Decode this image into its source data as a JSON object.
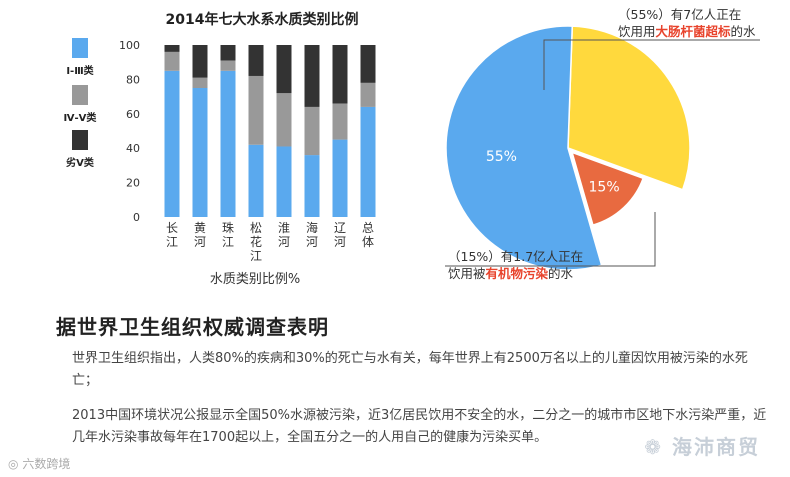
{
  "chart_data": [
    {
      "type": "bar",
      "stacked": true,
      "title": "2014年七大水系水质类别比例",
      "xlabel": "水质类别比例%",
      "ylim": [
        0,
        100
      ],
      "yticks": [
        0,
        20,
        40,
        60,
        80,
        100
      ],
      "legend_position": "left",
      "categories": [
        "长江",
        "黄河",
        "珠江",
        "松花江",
        "淮河",
        "海河",
        "辽河",
        "总体"
      ],
      "series": [
        {
          "name": "Ⅰ-Ⅲ类",
          "color": "#5aa9ee",
          "values": [
            85,
            75,
            85,
            42,
            41,
            36,
            45,
            64
          ]
        },
        {
          "name": "Ⅳ-Ⅴ类",
          "color": "#999999",
          "values": [
            11,
            6,
            6,
            40,
            31,
            28,
            21,
            14
          ]
        },
        {
          "name": "劣Ⅴ类",
          "color": "#333333",
          "values": [
            4,
            19,
            9,
            18,
            28,
            36,
            34,
            22
          ]
        }
      ]
    },
    {
      "type": "pie",
      "slices": [
        {
          "label": "55%",
          "value": 55,
          "color": "#5aa9ee"
        },
        {
          "label": "",
          "value": 30,
          "color": "#ffd93d"
        },
        {
          "label": "15%",
          "value": 15,
          "color": "#e86a40"
        }
      ]
    }
  ],
  "annotations": {
    "top": {
      "line1": "（55%）有7亿人正在",
      "line2_pre": "饮用用",
      "line2_hl": "大肠杆菌超标",
      "line2_post": "的水"
    },
    "bottom": {
      "line1": "（15%）有1.7亿人正在",
      "line2_pre": "饮用被",
      "line2_hl": "有机物污染",
      "line2_post": "的水"
    }
  },
  "article": {
    "heading": "据世界卫生组织权威调查表明",
    "para1": "世界卫生组织指出，人类80%的疾病和30%的死亡与水有关，每年世界上有2500万名以上的儿童因饮用被污染的水死亡；",
    "para2": "2013中国环境状况公报显示全国50%水源被污染，近3亿居民饮用不安全的水，二分之一的城市市区地下水污染严重，近几年水污染事故每年在1700起以上，全国五分之一的人用自己的健康为污染买单。"
  },
  "watermarks": {
    "left": "六数跨境",
    "right": "海沛商贸"
  }
}
